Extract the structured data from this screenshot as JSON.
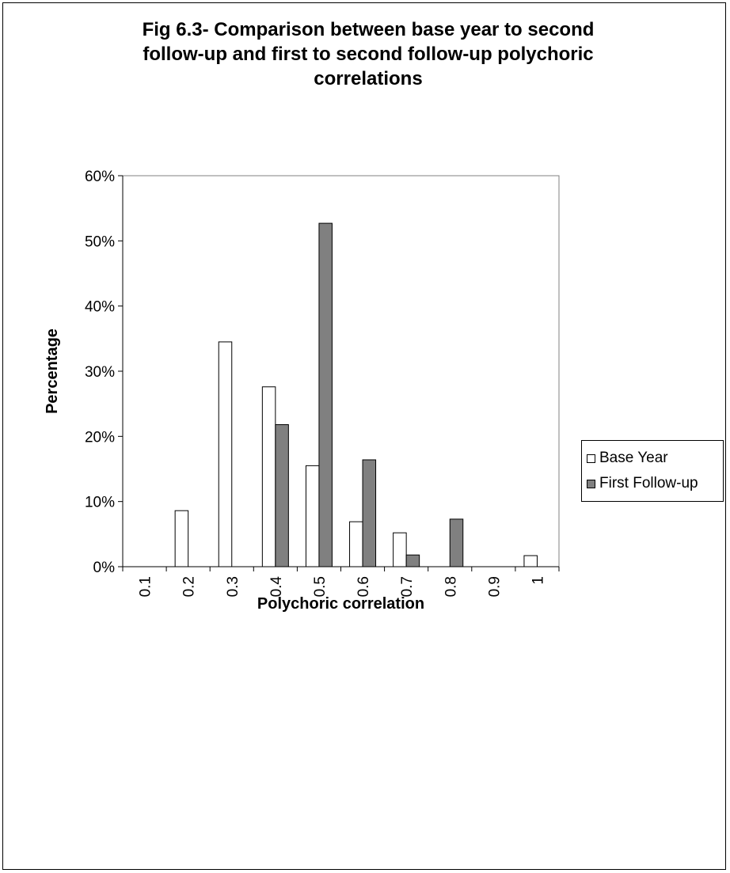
{
  "chart_data": {
    "type": "bar",
    "title": "Fig 6.3- Comparison between base year to second\nfollow-up and first to second follow-up polychoric\ncorrelations",
    "xlabel": "Polychoric correlation",
    "ylabel": "Percentage",
    "categories": [
      "0.1",
      "0.2",
      "0.3",
      "0.4",
      "0.5",
      "0.6",
      "0.7",
      "0.8",
      "0.9",
      "1"
    ],
    "series": [
      {
        "name": "Base Year",
        "color": "#ffffff",
        "values": [
          0,
          8.6,
          34.5,
          27.6,
          15.5,
          6.9,
          5.2,
          0,
          0,
          1.7
        ]
      },
      {
        "name": "First Follow-up",
        "color": "#808080",
        "values": [
          0,
          0,
          0,
          21.8,
          52.7,
          16.4,
          1.8,
          7.3,
          0,
          0
        ]
      }
    ],
    "ylim": [
      0,
      60
    ],
    "yticks": [
      "0%",
      "10%",
      "20%",
      "30%",
      "40%",
      "50%",
      "60%"
    ],
    "legend_position": "right",
    "grid": false
  }
}
